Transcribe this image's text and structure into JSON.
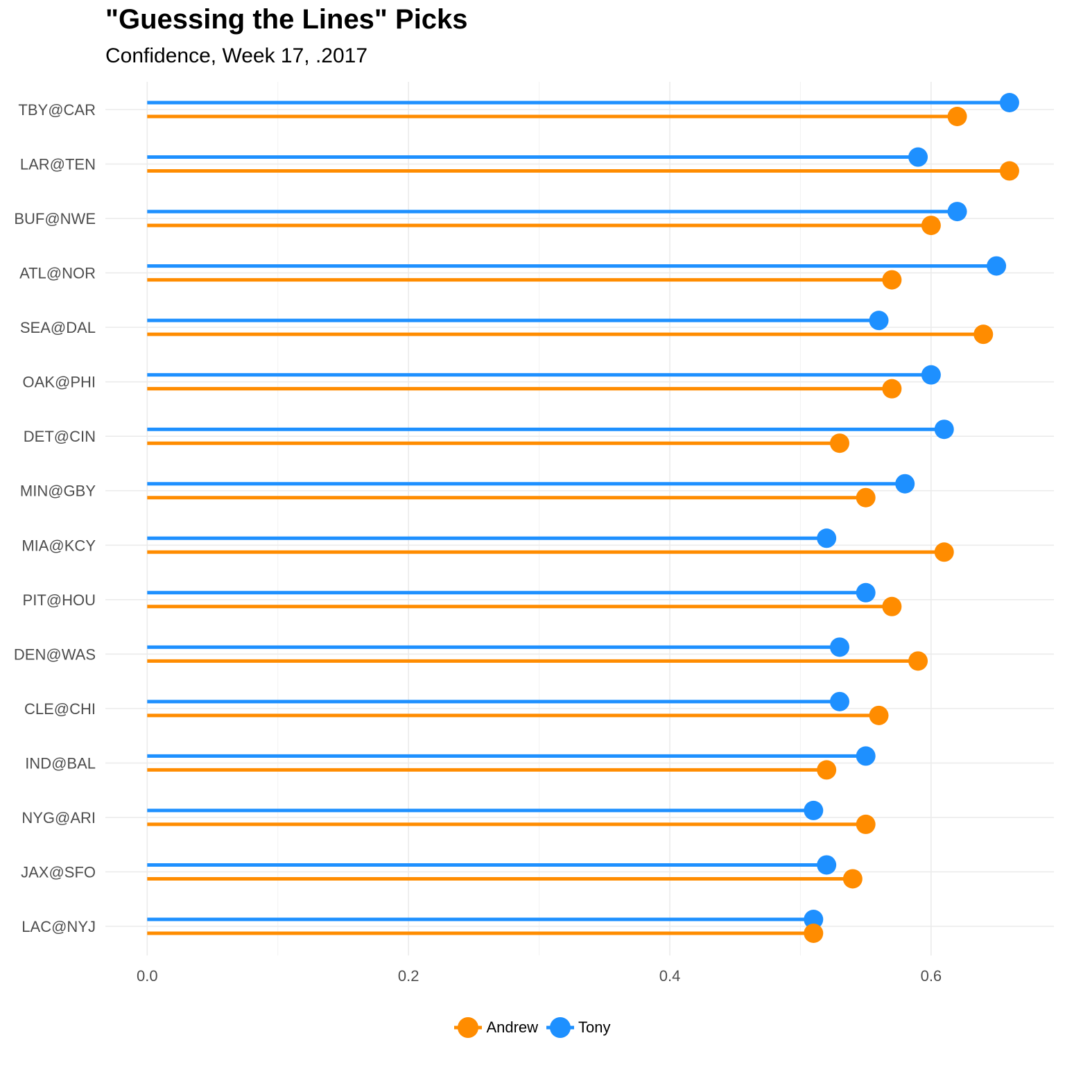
{
  "title": "\"Guessing the Lines\" Picks",
  "subtitle": "Confidence, Week 17, .2017",
  "chart_data": {
    "type": "lollipop",
    "categories": [
      "TBY@CAR",
      "LAR@TEN",
      "BUF@NWE",
      "ATL@NOR",
      "SEA@DAL",
      "OAK@PHI",
      "DET@CIN",
      "MIN@GBY",
      "MIA@KCY",
      "PIT@HOU",
      "DEN@WAS",
      "CLE@CHI",
      "IND@BAL",
      "NYG@ARI",
      "JAX@SFO",
      "LAC@NYJ"
    ],
    "series": [
      {
        "name": "Tony",
        "color": "#1e90ff",
        "values": [
          0.66,
          0.59,
          0.62,
          0.65,
          0.56,
          0.6,
          0.61,
          0.58,
          0.52,
          0.55,
          0.53,
          0.53,
          0.55,
          0.51,
          0.52,
          0.51
        ]
      },
      {
        "name": "Andrew",
        "color": "#ff8c00",
        "values": [
          0.62,
          0.66,
          0.6,
          0.57,
          0.64,
          0.57,
          0.53,
          0.55,
          0.61,
          0.57,
          0.59,
          0.56,
          0.52,
          0.55,
          0.54,
          0.51
        ]
      }
    ],
    "x_ticks": [
      "0.0",
      "0.2",
      "0.4",
      "0.6"
    ],
    "xlim": [
      -0.032,
      0.694
    ],
    "grid": true,
    "legend_position": "bottom",
    "legend": [
      "Andrew",
      "Tony"
    ]
  }
}
